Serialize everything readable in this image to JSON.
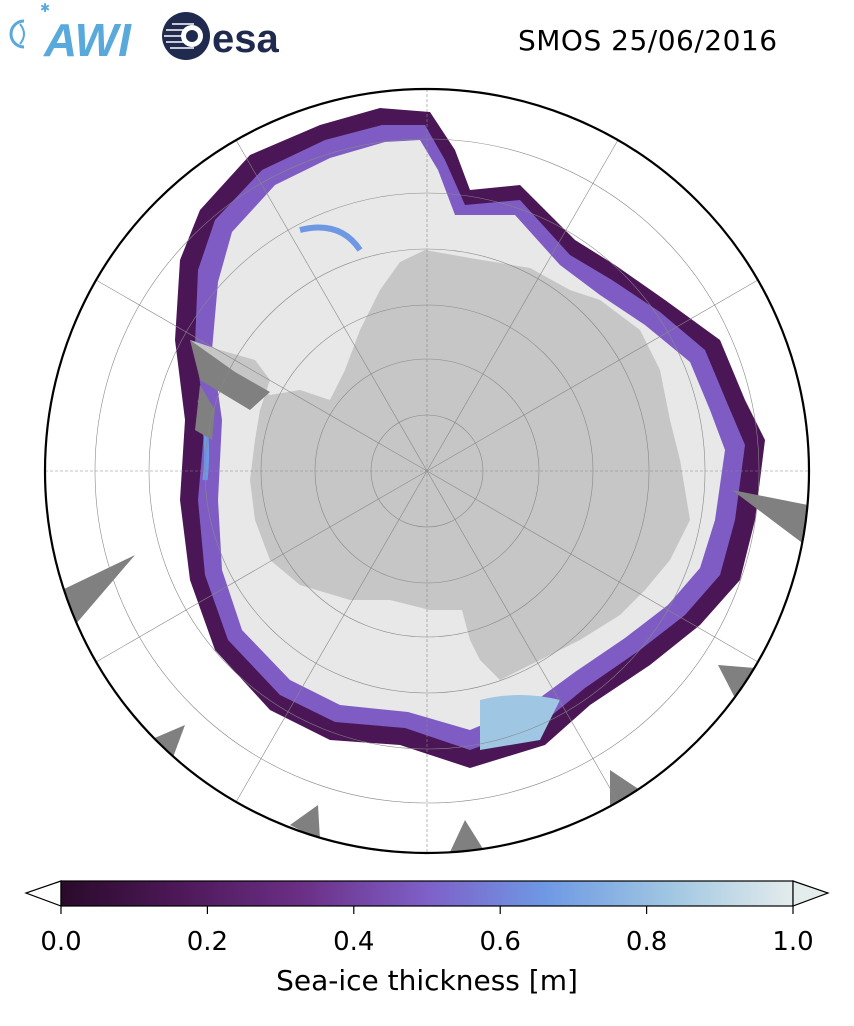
{
  "title": "SMOS 25/06/2016",
  "logos": [
    {
      "name": "AWI",
      "text": "AWI",
      "color": "#5aa9dd"
    },
    {
      "name": "esa",
      "text": "esa",
      "color": "#1f2a4e"
    }
  ],
  "colorbar": {
    "label": "Sea-ice thickness [m]",
    "min": 0.0,
    "max": 1.0,
    "ticks": [
      "0.0",
      "0.2",
      "0.4",
      "0.6",
      "0.8",
      "1.0"
    ],
    "extend": "both",
    "colormap": [
      "#2a0a2a",
      "#4d1858",
      "#6b2f86",
      "#7e60c8",
      "#6e98e4",
      "#9fc6e2",
      "#e4ecec"
    ]
  },
  "map": {
    "projection": "south polar stereographic",
    "land_color": "#c6c6c6",
    "ice_shelf_color": "#808080",
    "open_ocean_color": "#ffffff",
    "ice_color_thick": "#e8e8e8",
    "gridlines": true
  }
}
